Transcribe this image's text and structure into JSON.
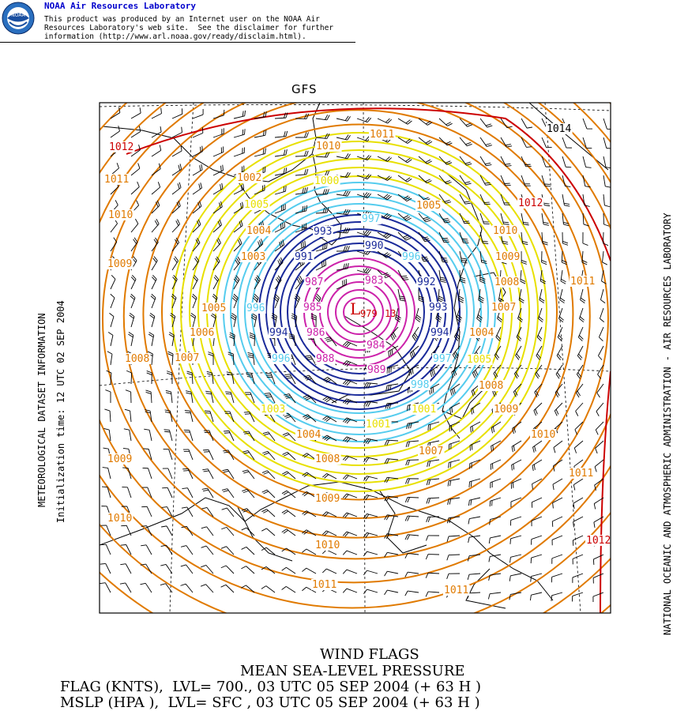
{
  "header": {
    "lab_name": "NOAA Air Resources Laboratory",
    "logo_text": "NOAA",
    "disclaimer_lines": [
      "This product was produced by an Internet user on the NOAA Air",
      "Resources Laboratory's web site.  See the disclaimer for further",
      "information (http://www.arl.noaa.gov/ready/disclaim.html)."
    ]
  },
  "map": {
    "title": "GFS",
    "low_marker": "L",
    "low_value": "979",
    "side_number": "13",
    "contour_colors": {
      "red": "#cc0000",
      "orange": "#e07a00",
      "yellow": "#e8e000",
      "cyan": "#55ccee",
      "blue": "#1a2a9a",
      "magenta": "#cc22aa",
      "black": "#000000"
    },
    "contour_labels": [
      {
        "text": "1014",
        "color": "black"
      },
      {
        "text": "1012",
        "color": "red"
      },
      {
        "text": "1012",
        "color": "red"
      },
      {
        "text": "1012",
        "color": "red"
      },
      {
        "text": "1011",
        "color": "orange"
      },
      {
        "text": "1011",
        "color": "orange"
      },
      {
        "text": "1011",
        "color": "orange"
      },
      {
        "text": "1011",
        "color": "orange"
      },
      {
        "text": "1011",
        "color": "orange"
      },
      {
        "text": "1011",
        "color": "orange"
      },
      {
        "text": "1010",
        "color": "orange"
      },
      {
        "text": "1010",
        "color": "orange"
      },
      {
        "text": "1010",
        "color": "orange"
      },
      {
        "text": "1010",
        "color": "orange"
      },
      {
        "text": "1010",
        "color": "orange"
      },
      {
        "text": "1010",
        "color": "orange"
      },
      {
        "text": "1009",
        "color": "orange"
      },
      {
        "text": "1009",
        "color": "orange"
      },
      {
        "text": "1009",
        "color": "orange"
      },
      {
        "text": "1009",
        "color": "orange"
      },
      {
        "text": "1009",
        "color": "orange"
      },
      {
        "text": "1008",
        "color": "orange"
      },
      {
        "text": "1008",
        "color": "orange"
      },
      {
        "text": "1008",
        "color": "orange"
      },
      {
        "text": "1008",
        "color": "orange"
      },
      {
        "text": "1007",
        "color": "orange"
      },
      {
        "text": "1007",
        "color": "orange"
      },
      {
        "text": "1007",
        "color": "orange"
      },
      {
        "text": "1006",
        "color": "orange"
      },
      {
        "text": "1005",
        "color": "orange"
      },
      {
        "text": "1005",
        "color": "orange"
      },
      {
        "text": "1004",
        "color": "orange"
      },
      {
        "text": "1004",
        "color": "orange"
      },
      {
        "text": "1004",
        "color": "orange"
      },
      {
        "text": "1003",
        "color": "orange"
      },
      {
        "text": "1002",
        "color": "orange"
      },
      {
        "text": "1005",
        "color": "yellow"
      },
      {
        "text": "1005",
        "color": "yellow"
      },
      {
        "text": "1003",
        "color": "yellow"
      },
      {
        "text": "1001",
        "color": "yellow"
      },
      {
        "text": "1001",
        "color": "yellow"
      },
      {
        "text": "1000",
        "color": "yellow"
      },
      {
        "text": "997",
        "color": "cyan"
      },
      {
        "text": "996",
        "color": "cyan"
      },
      {
        "text": "996",
        "color": "cyan"
      },
      {
        "text": "996",
        "color": "cyan"
      },
      {
        "text": "997",
        "color": "cyan"
      },
      {
        "text": "998",
        "color": "cyan"
      },
      {
        "text": "993",
        "color": "blue"
      },
      {
        "text": "991",
        "color": "blue"
      },
      {
        "text": "990",
        "color": "blue"
      },
      {
        "text": "992",
        "color": "blue"
      },
      {
        "text": "993",
        "color": "blue"
      },
      {
        "text": "994",
        "color": "blue"
      },
      {
        "text": "994",
        "color": "blue"
      },
      {
        "text": "987",
        "color": "magenta"
      },
      {
        "text": "983",
        "color": "magenta"
      },
      {
        "text": "985",
        "color": "magenta"
      },
      {
        "text": "986",
        "color": "magenta"
      },
      {
        "text": "984",
        "color": "magenta"
      },
      {
        "text": "988",
        "color": "magenta"
      },
      {
        "text": "989",
        "color": "magenta"
      }
    ]
  },
  "left_labels": {
    "line1": "METEOROLOGICAL DATASET INFORMATION",
    "line2": "Initialization time: 12 UTC 02 SEP 2004"
  },
  "right_label": "NATIONAL OCEANIC AND ATMOSPHERIC ADMINISTRATION - AIR RESOURCES LABORATORY",
  "footer": {
    "line1": "WIND FLAGS",
    "line2": "MEAN SEA-LEVEL PRESSURE",
    "line3": "FLAG (KNTS),  LVL= 700., 03 UTC 05 SEP 2004 (+ 63 H )",
    "line4": "MSLP (HPA ),  LVL= SFC , 03 UTC 05 SEP 2004 (+ 63 H )"
  }
}
